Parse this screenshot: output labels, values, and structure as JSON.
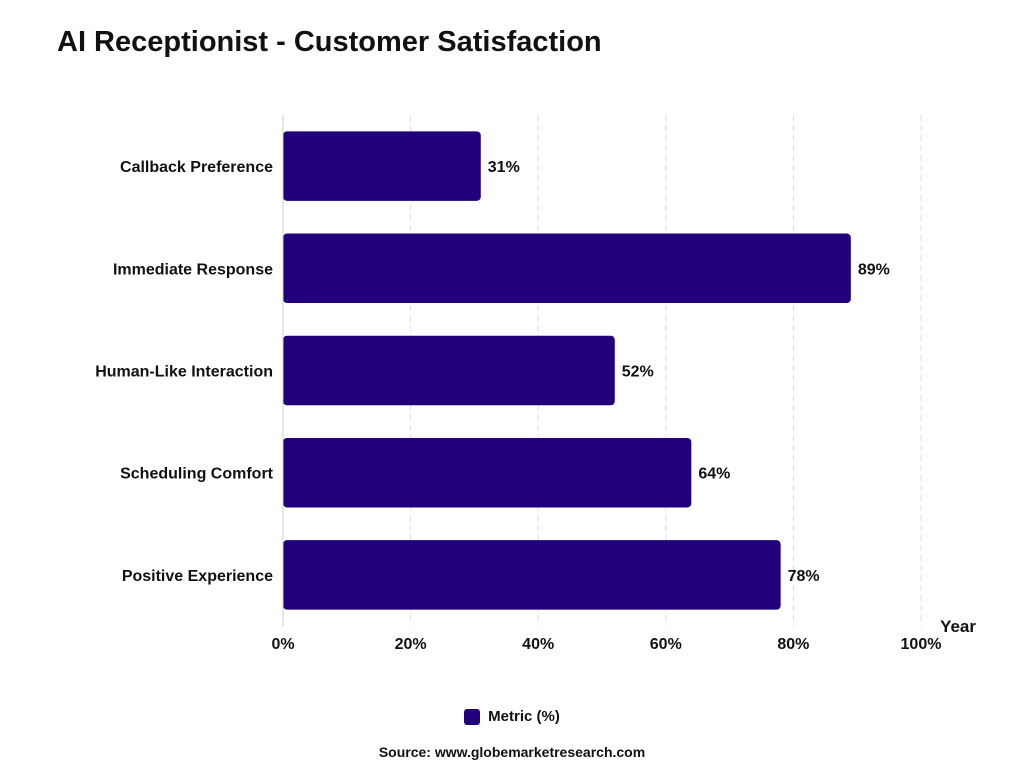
{
  "chart_data": {
    "type": "bar",
    "orientation": "horizontal",
    "title": "AI Receptionist - Customer Satisfaction",
    "xlabel": "Year",
    "ylabel": "",
    "categories": [
      "Callback Preference",
      "Immediate Response",
      "Human-Like Interaction",
      "Scheduling Comfort",
      "Positive Experience"
    ],
    "series": [
      {
        "name": "Metric (%)",
        "values": [
          31,
          89,
          52,
          64,
          78
        ],
        "value_labels": [
          "31%",
          "89%",
          "52%",
          "64%",
          "78%"
        ],
        "color": "#22007C"
      }
    ],
    "xlim": [
      0,
      100
    ],
    "x_ticks": [
      0,
      20,
      40,
      60,
      80,
      100
    ],
    "x_tick_labels": [
      "0%",
      "20%",
      "40%",
      "60%",
      "80%",
      "100%"
    ],
    "grid": true,
    "legend_position": "bottom-center"
  },
  "source": "Source: www.globemarketresearch.com"
}
